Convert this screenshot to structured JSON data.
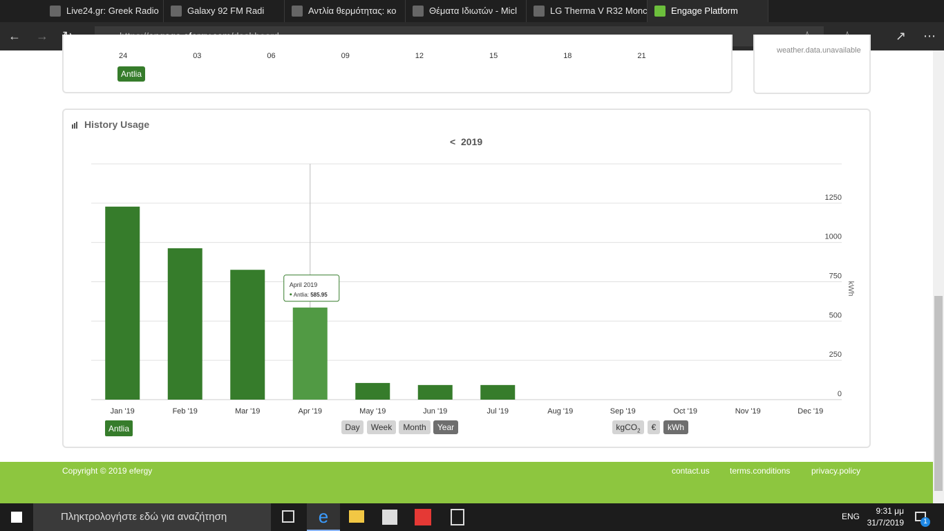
{
  "browser": {
    "tabs": [
      {
        "title": "Live24.gr: Greek Radio",
        "selected": false
      },
      {
        "title": "Galaxy 92 FM Radi",
        "selected": false
      },
      {
        "title": "Αντλία θερμότητας: κο",
        "selected": false
      },
      {
        "title": "Θέματα Ιδιωτών - Micl",
        "selected": false
      },
      {
        "title": "LG Therma V R32 Monc",
        "selected": false
      },
      {
        "title": "Engage Platform",
        "selected": true
      }
    ],
    "url": {
      "scheme": "https://",
      "host": "engage.efergy.com",
      "path": "/dashboard"
    }
  },
  "top_panel": {
    "x_labels": [
      "24",
      "03",
      "06",
      "09",
      "12",
      "15",
      "18",
      "21"
    ],
    "legend": "Antlia",
    "weather": "weather.data.unavailable"
  },
  "history": {
    "title": "History Usage",
    "nav_prev": "<",
    "year": "2019",
    "periods": [
      {
        "label": "Day",
        "selected": false
      },
      {
        "label": "Week",
        "selected": false
      },
      {
        "label": "Month",
        "selected": false
      },
      {
        "label": "Year",
        "selected": true
      }
    ],
    "units": [
      {
        "label": "kgCO",
        "sub": "2",
        "selected": false
      },
      {
        "label": "€",
        "selected": false
      },
      {
        "label": "kWh",
        "selected": true
      }
    ]
  },
  "chart_data": {
    "type": "bar",
    "categories": [
      "Jan '19",
      "Feb '19",
      "Mar '19",
      "Apr '19",
      "May '19",
      "Jun '19",
      "Jul '19",
      "Aug '19",
      "Sep '19",
      "Oct '19",
      "Nov '19",
      "Dec '19"
    ],
    "series": [
      {
        "name": "Antlia",
        "color": "#367c2b",
        "hover_color": "#519a44",
        "values": [
          1228,
          963,
          826,
          585.95,
          106,
          93,
          93,
          null,
          null,
          null,
          null,
          null
        ]
      }
    ],
    "y_label": "kWh",
    "ylim": [
      0,
      1500
    ],
    "yticks": [
      0,
      250,
      500,
      750,
      1000,
      1250
    ],
    "grid": true,
    "tooltip": {
      "title": "April 2019",
      "series_name": "Antlia: ",
      "value": 585.95
    }
  },
  "footer": {
    "copyright": "Copyright © 2019 efergy",
    "links": [
      "contact.us",
      "terms.conditions",
      "privacy.policy"
    ]
  },
  "taskbar": {
    "search": "Πληκτρολογήστε εδώ για αναζήτηση",
    "language": "ENG",
    "time": "9:31 μμ",
    "date": "31/7/2019",
    "notifications": "1"
  }
}
